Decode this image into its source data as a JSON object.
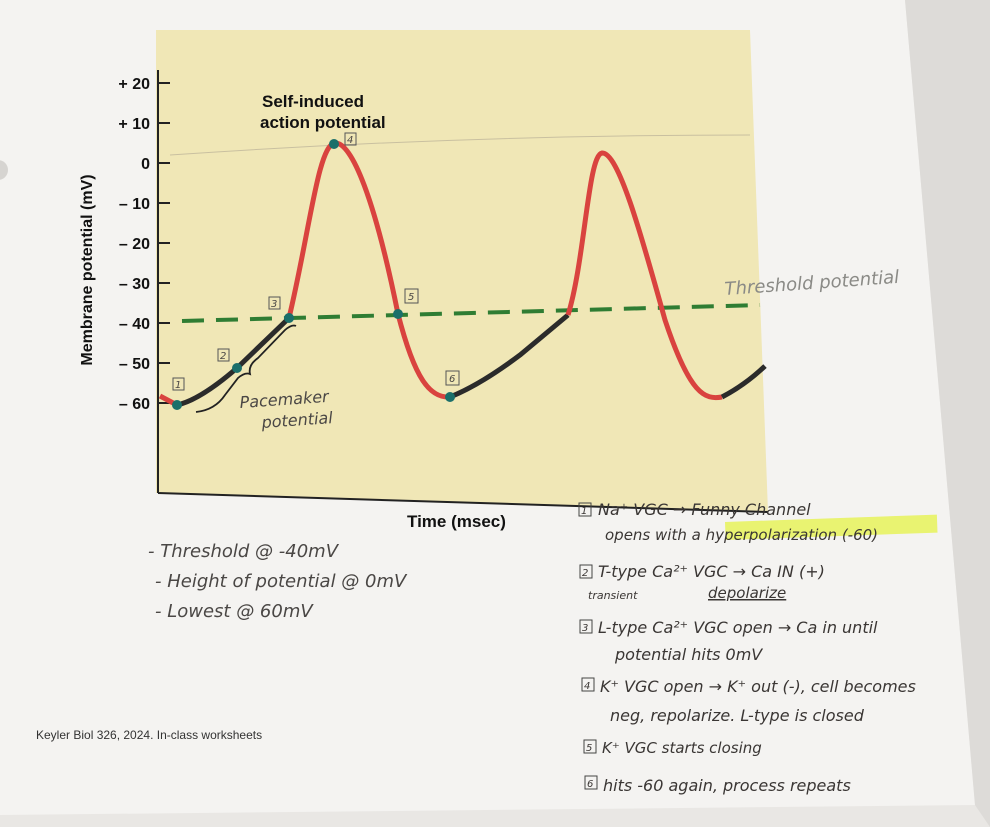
{
  "figure": {
    "title_line1": "Self-induced",
    "title_line2": "action potential",
    "ylabel": "Membrane potential (mV)",
    "xlabel": "Time (msec)",
    "credit": "Keyler Biol 326, 2024. In-class worksheets"
  },
  "chart_data": {
    "type": "line",
    "ylim": [
      -80,
      25
    ],
    "yticks": [
      {
        "value": 20,
        "label": "+ 20"
      },
      {
        "value": 10,
        "label": "+ 10"
      },
      {
        "value": 0,
        "label": "0"
      },
      {
        "value": -10,
        "label": "– 10"
      },
      {
        "value": -20,
        "label": "– 20"
      },
      {
        "value": -30,
        "label": "– 30"
      },
      {
        "value": -40,
        "label": "– 40"
      },
      {
        "value": -50,
        "label": "– 50"
      },
      {
        "value": -60,
        "label": "– 60"
      }
    ],
    "threshold_mv": -40
  },
  "annotations": {
    "threshold_label": "Threshold potential",
    "pacemaker_line1": "Pacemaker",
    "pacemaker_line2": "potential",
    "markers": [
      "1",
      "2",
      "3",
      "4",
      "5",
      "6"
    ]
  },
  "notes_left": [
    "- Threshold @ -40mV",
    "- Height of potential @ 0mV",
    "- Lowest @ 60mV"
  ],
  "notes_right": {
    "n1_line1": "Na⁺ VGC → Funny Channel",
    "n1_line2": "opens with a hyperpolarization (-60)",
    "n2_line1": "T-type Ca²⁺ VGC → Ca IN (+)",
    "n2_sub_a": "transient",
    "n2_sub_b": "depolarize",
    "n3_line1": "L-type Ca²⁺ VGC open → Ca in until",
    "n3_line2": "potential hits 0mV",
    "n4_line1": "K⁺ VGC open → K⁺ out (-), cell becomes",
    "n4_line2": "neg, repolarize. L-type is closed",
    "n5": "K⁺ VGC starts closing",
    "n6": "hits -60 again, process repeats"
  }
}
